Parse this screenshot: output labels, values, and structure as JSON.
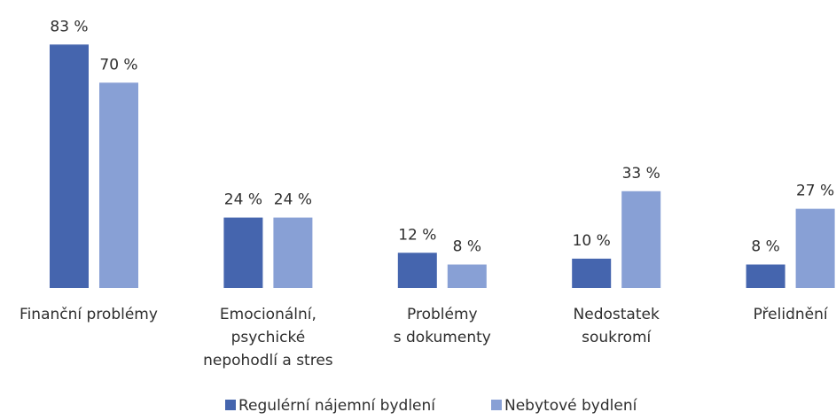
{
  "chart_data": {
    "type": "bar",
    "categories": [
      [
        "Finanční problémy"
      ],
      [
        "Emocionální,",
        "psychické",
        "nepohodlí a stres"
      ],
      [
        "Problémy",
        "s dokumenty"
      ],
      [
        "Nedostatek",
        "soukromí"
      ],
      [
        "Přelidnění"
      ]
    ],
    "series": [
      {
        "name": "Regulérní nájemní bydlení",
        "color": "#4565ae",
        "values": [
          83,
          24,
          12,
          10,
          8
        ],
        "value_labels": [
          "83 %",
          "24 %",
          "12 %",
          "10 %",
          "8 %"
        ]
      },
      {
        "name": "Nebytové bydlení",
        "color": "#88a0d5",
        "values": [
          70,
          24,
          8,
          33,
          27
        ],
        "value_labels": [
          "70 %",
          "24 %",
          "8 %",
          "33 %",
          "27 %"
        ]
      }
    ]
  }
}
